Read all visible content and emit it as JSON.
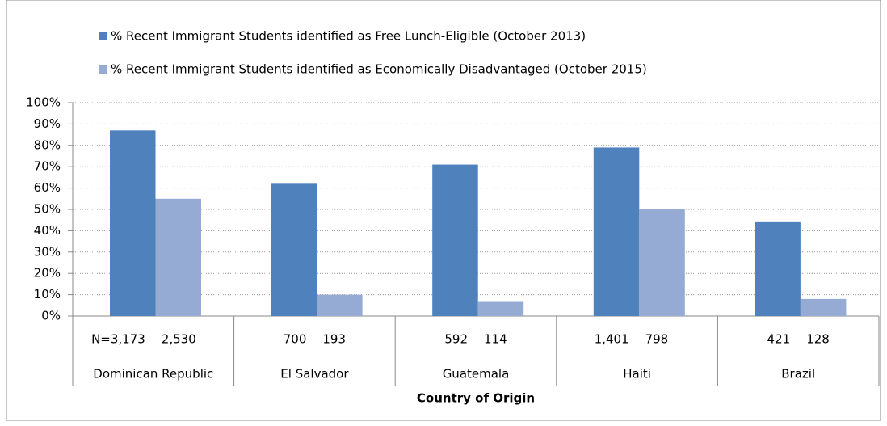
{
  "chart_data": {
    "type": "bar",
    "categories": [
      "Dominican Republic",
      "El Salvador",
      "Guatemala",
      "Haiti",
      "Brazil"
    ],
    "n_labels": [
      [
        "N=3,173",
        "2,530"
      ],
      [
        "700",
        "193"
      ],
      [
        "592",
        "114"
      ],
      [
        "1,401",
        "798"
      ],
      [
        "421",
        "128"
      ]
    ],
    "series": [
      {
        "name": "% Recent Immigrant Students identified as Free Lunch-Eligible (October 2013)",
        "color": "#4f81bd",
        "values": [
          87,
          62,
          71,
          79,
          44
        ]
      },
      {
        "name": "% Recent Immigrant Students identified as Economically Disadvantaged (October 2015)",
        "color": "#95abd3",
        "values": [
          55,
          10,
          7,
          50,
          8
        ]
      }
    ],
    "x_label": "Country of Origin",
    "ylim": [
      0,
      100
    ],
    "yticks": [
      {
        "value": 0,
        "label": "0%"
      },
      {
        "value": 10,
        "label": "10%"
      },
      {
        "value": 20,
        "label": "20%"
      },
      {
        "value": 30,
        "label": "30%"
      },
      {
        "value": 40,
        "label": "40%"
      },
      {
        "value": 50,
        "label": "50%"
      },
      {
        "value": 60,
        "label": "60%"
      },
      {
        "value": 70,
        "label": "70%"
      },
      {
        "value": 80,
        "label": "80%"
      },
      {
        "value": 90,
        "label": "90%"
      },
      {
        "value": 100,
        "label": "100%"
      }
    ],
    "grid": true,
    "legend": "top"
  }
}
